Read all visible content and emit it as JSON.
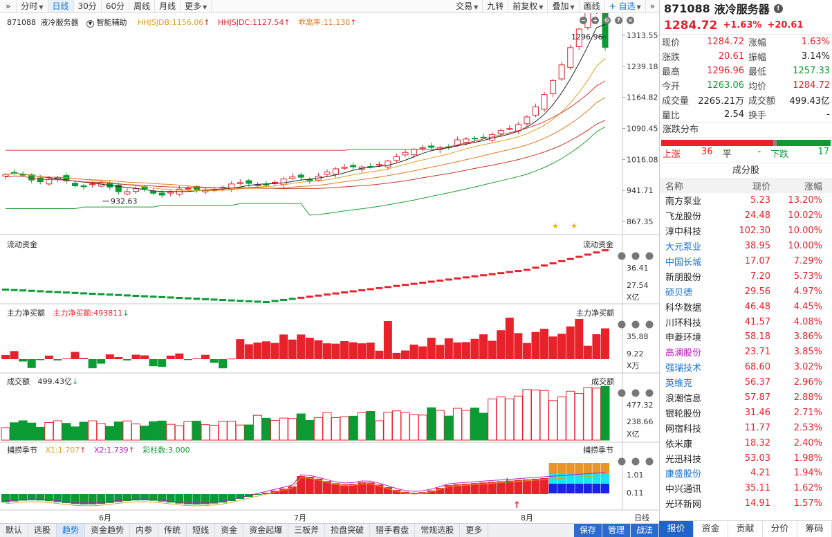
{
  "toolbar": {
    "left_tabs": [
      "分时",
      "日线",
      "30分",
      "60分",
      "周线",
      "月线",
      "更多"
    ],
    "active_tab": "日线",
    "right_items": [
      "交易",
      "九转",
      "前复权",
      "叠加",
      "画线",
      "+ 自选"
    ]
  },
  "stock": {
    "code": "871088",
    "name": "液冷服务器",
    "price": "1284.72",
    "change_pct": "+1.63%",
    "change": "+20.61"
  },
  "main_panel": {
    "title_code": "871088",
    "title_name": "液冷服务器",
    "assist_label": "智能辅助",
    "ind1": "HHJSJDB:1156.06",
    "ind2": "HHJSJDC:1127.54",
    "ind3": "乖离率:11.130",
    "y_ticks": [
      "1313.55",
      "1239.18",
      "1164.82",
      "1090.45",
      "1016.08",
      "941.71",
      "867.35"
    ],
    "high_label": "1296.96",
    "low_label": "932.63"
  },
  "flow_panel": {
    "title": "流动资金",
    "title_right": "流动资金",
    "y_ticks": [
      "36.41",
      "27.54"
    ],
    "unit": "X亿"
  },
  "net_panel": {
    "title": "主力净买额",
    "value_label": "主力净买额:493811",
    "title_right": "主力净买额",
    "y_ticks": [
      "35.88",
      "9.22"
    ],
    "unit": "X万"
  },
  "vol_panel": {
    "title": "成交额",
    "value_label": "499.43亿",
    "title_right": "成交额",
    "y_ticks": [
      "477.32",
      "238.66"
    ],
    "unit": "X亿"
  },
  "season_panel": {
    "title": "捕捞季节",
    "x1": "X1:1.707",
    "x2": "X2:1.739",
    "count": "彩柱数:3.000",
    "title_right": "捕捞季节",
    "y_ticks": [
      "1.01",
      "0.11"
    ]
  },
  "x_axis": {
    "months": [
      "6月",
      "7月",
      "8月"
    ],
    "period": "日线"
  },
  "quote": {
    "rows": [
      {
        "l1": "现价",
        "v1": "1284.72",
        "l2": "涨幅",
        "v2": "1.63%",
        "c1": "red",
        "c2": "red"
      },
      {
        "l1": "涨跌",
        "v1": "20.61",
        "l2": "振幅",
        "v2": "3.14%",
        "c1": "red",
        "c2": "normal"
      },
      {
        "l1": "最高",
        "v1": "1296.96",
        "l2": "最低",
        "v2": "1257.33",
        "c1": "red",
        "c2": "green"
      },
      {
        "l1": "今开",
        "v1": "1263.06",
        "l2": "均价",
        "v2": "1284.72",
        "c1": "green",
        "c2": "red"
      },
      {
        "l1": "成交量",
        "v1": "2265.21万",
        "l2": "成交额",
        "v2": "499.43亿",
        "c1": "normal",
        "c2": "normal"
      },
      {
        "l1": "量比",
        "v1": "2.54",
        "l2": "换手",
        "v2": "-",
        "c1": "normal",
        "c2": "normal"
      }
    ],
    "dist_title": "涨跌分布",
    "up_label": "上涨",
    "up_count": "36",
    "flat_label": "平",
    "flat_count": "-",
    "down_label": "下跌",
    "down_count": "17"
  },
  "components": {
    "title": "成分股",
    "headers": [
      "名称",
      "现价",
      "涨幅"
    ],
    "rows": [
      {
        "name": "南方泵业",
        "price": "5.23",
        "pct": "13.20%",
        "nc": "normal"
      },
      {
        "name": "飞龙股份",
        "price": "24.48",
        "pct": "10.02%",
        "nc": "normal"
      },
      {
        "name": "淳中科技",
        "price": "102.30",
        "pct": "10.00%",
        "nc": "normal"
      },
      {
        "name": "大元泵业",
        "price": "38.95",
        "pct": "10.00%",
        "nc": "blue"
      },
      {
        "name": "中国长城",
        "price": "17.07",
        "pct": "7.29%",
        "nc": "blue"
      },
      {
        "name": "新朋股份",
        "price": "7.20",
        "pct": "5.73%",
        "nc": "normal"
      },
      {
        "name": "硕贝德",
        "price": "29.56",
        "pct": "4.97%",
        "nc": "blue"
      },
      {
        "name": "科华数据",
        "price": "46.48",
        "pct": "4.45%",
        "nc": "normal"
      },
      {
        "name": "川环科技",
        "price": "41.57",
        "pct": "4.08%",
        "nc": "normal"
      },
      {
        "name": "申菱环境",
        "price": "58.18",
        "pct": "3.86%",
        "nc": "normal"
      },
      {
        "name": "高澜股份",
        "price": "23.71",
        "pct": "3.85%",
        "nc": "purple"
      },
      {
        "name": "强瑞技术",
        "price": "68.60",
        "pct": "3.02%",
        "nc": "blue"
      },
      {
        "name": "英维克",
        "price": "56.37",
        "pct": "2.96%",
        "nc": "blue"
      },
      {
        "name": "浪潮信息",
        "price": "57.87",
        "pct": "2.88%",
        "nc": "normal"
      },
      {
        "name": "银轮股份",
        "price": "31.46",
        "pct": "2.71%",
        "nc": "normal"
      },
      {
        "name": "网宿科技",
        "price": "11.77",
        "pct": "2.53%",
        "nc": "normal"
      },
      {
        "name": "依米康",
        "price": "18.32",
        "pct": "2.40%",
        "nc": "normal"
      },
      {
        "name": "光迅科技",
        "price": "53.03",
        "pct": "1.98%",
        "nc": "normal"
      },
      {
        "name": "康盛股份",
        "price": "4.21",
        "pct": "1.94%",
        "nc": "blue"
      },
      {
        "name": "中兴通讯",
        "price": "35.11",
        "pct": "1.62%",
        "nc": "normal"
      },
      {
        "name": "光环新网",
        "price": "14.91",
        "pct": "1.57%",
        "nc": "normal"
      }
    ]
  },
  "bottom_tabs": [
    "默认",
    "选股",
    "趋势",
    "资金趋势",
    "内参",
    "传统",
    "短线",
    "资金",
    "资金起爆",
    "三板斧",
    "捡盘突破",
    "猎手看盘",
    "常规选股",
    "更多",
    "保存",
    "管理",
    "战法"
  ],
  "bottom_active": "趋势",
  "right_tabs": [
    "报价",
    "资金",
    "贡献",
    "分价",
    "筹码"
  ],
  "right_active": "报价",
  "colors": {
    "up": "#e8212b",
    "down": "#0a9b33",
    "accent": "#1a6fd6"
  }
}
